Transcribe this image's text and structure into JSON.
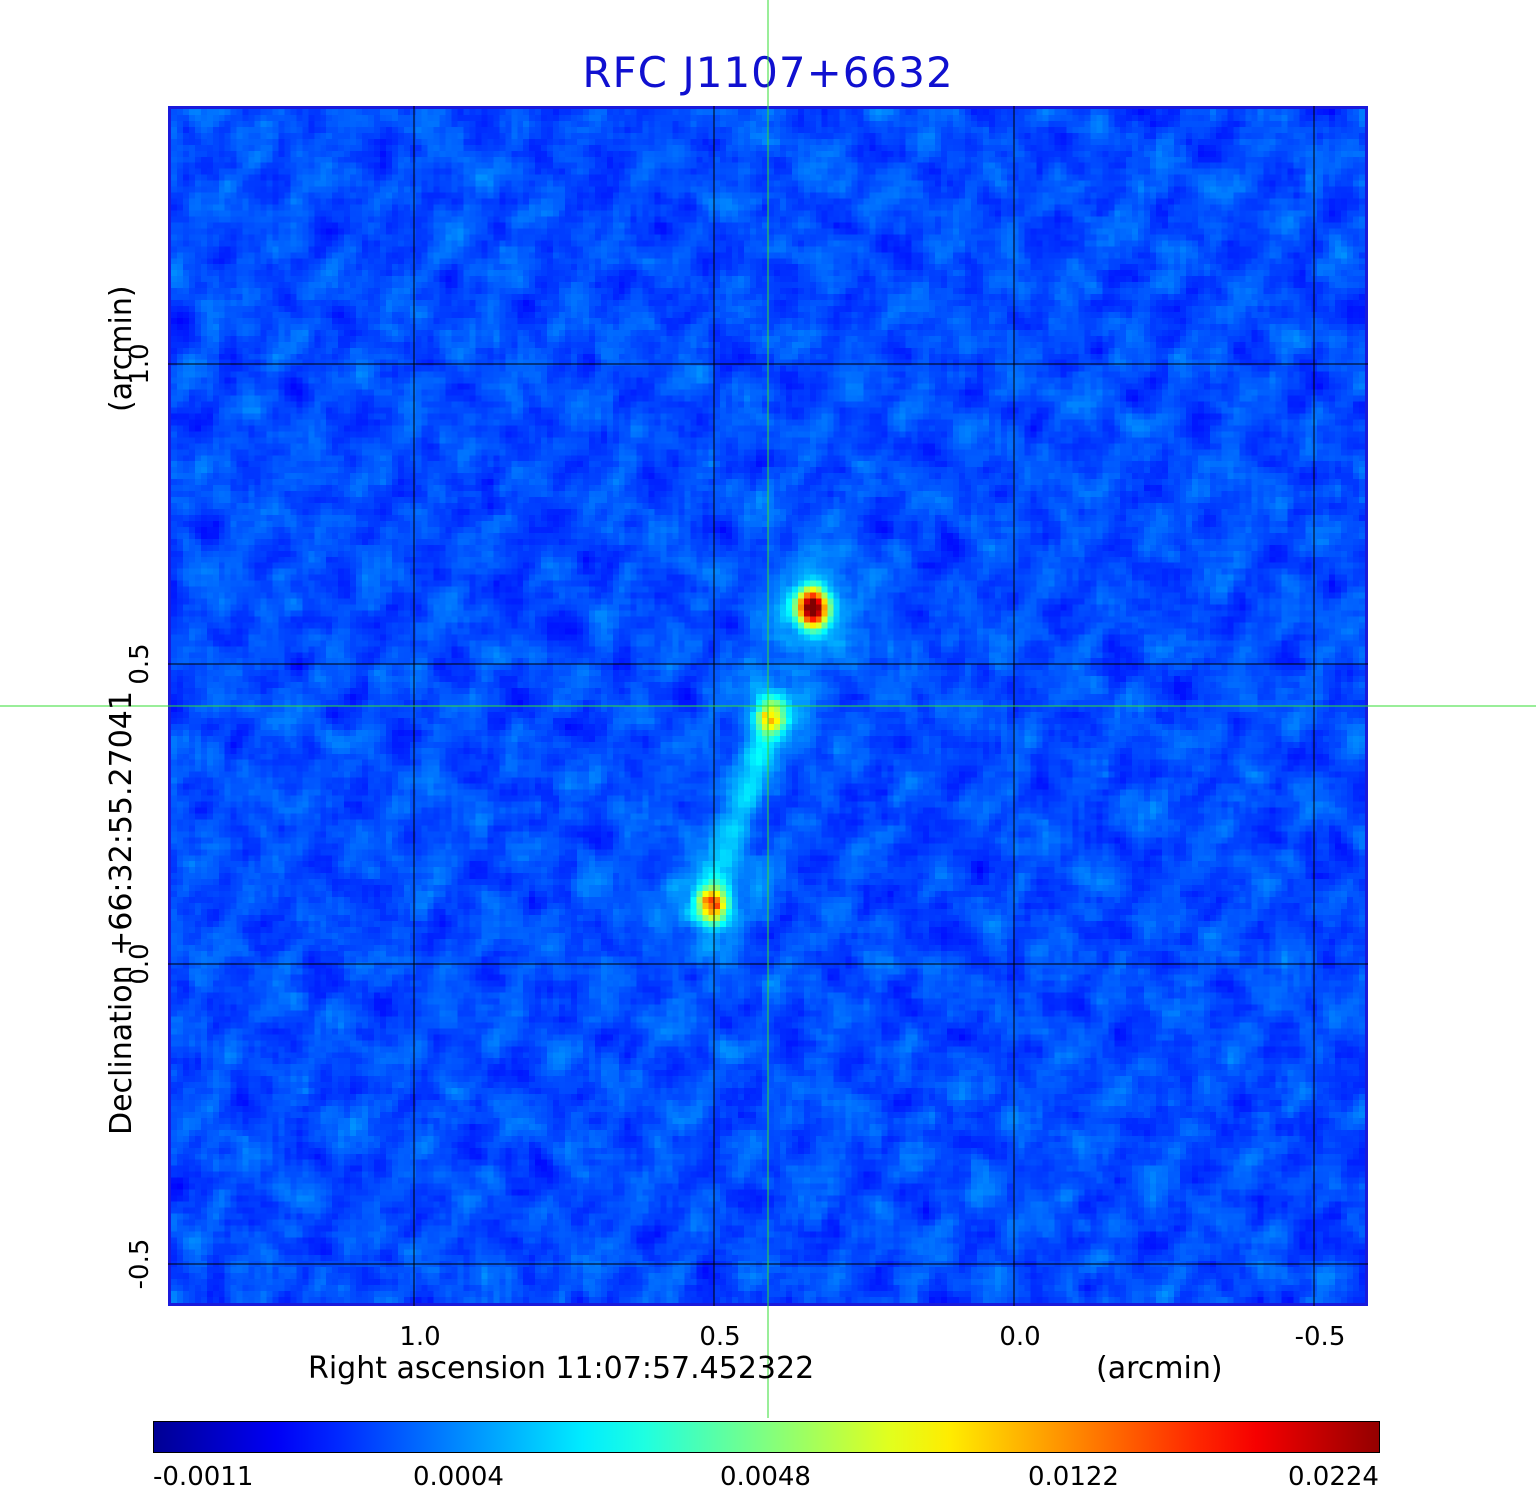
{
  "title": "RFC J1107+6632",
  "axes": {
    "x": {
      "label": "Right ascension  11:07:57.452322",
      "unit": "(arcmin)",
      "ticks": [
        "1.0",
        "0.5",
        "0.0",
        "-0.5"
      ],
      "tick_values": [
        1.0,
        0.5,
        0.0,
        -0.5
      ],
      "range": [
        1.41,
        -0.59
      ]
    },
    "y": {
      "label": "Declination  +66:32:55.27041",
      "unit": "(arcmin)",
      "ticks": [
        "1.0",
        "0.5",
        "0.0",
        "-0.5"
      ],
      "tick_values": [
        1.0,
        0.5,
        0.0,
        -0.5
      ],
      "range": [
        -0.57,
        1.43
      ]
    }
  },
  "grid": true,
  "crosshair": {
    "ra_offset": 0.41,
    "dec_offset": 0.43,
    "color": "#33dd33"
  },
  "colorbar": {
    "colormap": "jet",
    "labels": [
      "-0.0011",
      "0.0004",
      "0.0048",
      "0.0122",
      "0.0224"
    ]
  },
  "sources": [
    {
      "ra_offset": 0.34,
      "dec_offset": 0.6,
      "peak": 1.0
    },
    {
      "ra_offset": 0.41,
      "dec_offset": 0.42,
      "peak": 0.55
    },
    {
      "ra_offset": 0.51,
      "dec_offset": 0.1,
      "peak": 0.68
    }
  ]
}
